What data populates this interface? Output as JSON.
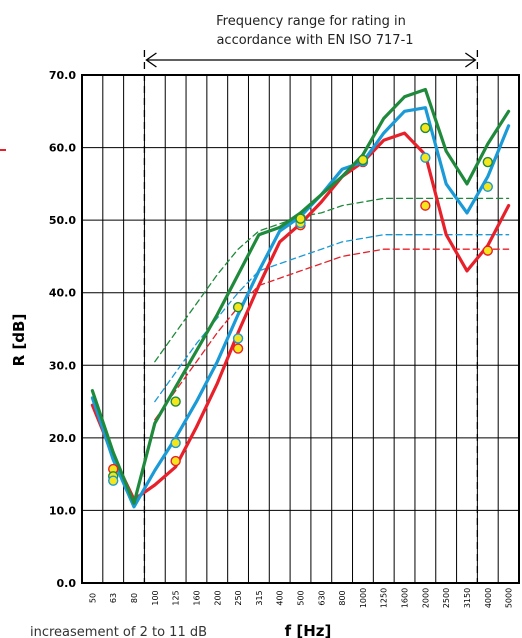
{
  "chart_data": {
    "type": "line",
    "title": "",
    "xlabel": "f [Hz]",
    "ylabel": "R [dB]",
    "ylim": [
      0,
      70
    ],
    "yticks": [
      "0.0",
      "10.0",
      "20.0",
      "30.0",
      "40.0",
      "50.0",
      "60.0",
      "70.0"
    ],
    "ytick_values": [
      0,
      10,
      20,
      30,
      40,
      50,
      60,
      70
    ],
    "categories": [
      "50",
      "63",
      "80",
      "100",
      "125",
      "160",
      "200",
      "250",
      "315",
      "400",
      "500",
      "630",
      "800",
      "1000",
      "1250",
      "1600",
      "2000",
      "2500",
      "3150",
      "4000",
      "5000"
    ],
    "grid": true,
    "annotation": {
      "text_line1": "Frequency range for rating in",
      "text_line2": "accordance with EN ISO 717-1",
      "from": "100",
      "to": "3150"
    },
    "caption": "increasement of 2 to 11 dB",
    "series": [
      {
        "color": "#e8202a",
        "style": "solid",
        "values": [
          24.5,
          17.5,
          11.5,
          13.5,
          16.0,
          21.5,
          27.5,
          34.5,
          41.0,
          47.0,
          49.5,
          52.5,
          56.0,
          58.0,
          61.0,
          62.0,
          59.0,
          48.0,
          43.0,
          46.5,
          52.0
        ]
      },
      {
        "color": "#1a9ad6",
        "style": "solid",
        "values": [
          25.5,
          17.0,
          10.5,
          15.5,
          20.0,
          25.0,
          30.5,
          37.0,
          43.0,
          48.5,
          50.5,
          53.5,
          57.0,
          58.0,
          62.0,
          65.0,
          65.5,
          55.0,
          51.0,
          56.0,
          63.0
        ]
      },
      {
        "color": "#1f8a3c",
        "style": "solid",
        "values": [
          26.5,
          18.0,
          11.0,
          22.0,
          27.0,
          32.0,
          37.0,
          42.5,
          48.0,
          49.0,
          51.0,
          53.5,
          56.0,
          59.0,
          64.0,
          67.0,
          68.0,
          59.5,
          55.0,
          60.5,
          65.0
        ]
      },
      {
        "color": "#e8202a",
        "style": "dashed",
        "values": [
          null,
          null,
          null,
          22.5,
          26.5,
          30.5,
          34.5,
          38.0,
          41.0,
          42.0,
          43.0,
          44.0,
          45.0,
          45.5,
          46.0,
          46.0,
          46.0,
          46.0,
          46.0,
          46.0,
          46.0
        ]
      },
      {
        "color": "#1a9ad6",
        "style": "dashed",
        "values": [
          null,
          null,
          null,
          25.0,
          29.0,
          33.0,
          36.5,
          40.0,
          43.0,
          44.0,
          45.0,
          46.0,
          47.0,
          47.5,
          48.0,
          48.0,
          48.0,
          48.0,
          48.0,
          48.0,
          48.0
        ]
      },
      {
        "color": "#1f8a3c",
        "style": "dashed",
        "values": [
          null,
          null,
          null,
          30.5,
          34.5,
          38.5,
          42.5,
          46.0,
          48.5,
          49.5,
          50.5,
          51.0,
          52.0,
          52.5,
          53.0,
          53.0,
          53.0,
          53.0,
          53.0,
          53.0,
          53.0
        ]
      }
    ],
    "points": [
      {
        "x": "63",
        "y": 15.7,
        "edge": "#e8202a"
      },
      {
        "x": "63",
        "y": 14.7,
        "edge": "#1f8a3c"
      },
      {
        "x": "63",
        "y": 14.1,
        "edge": "#1a9ad6"
      },
      {
        "x": "125",
        "y": 16.8,
        "edge": "#e8202a"
      },
      {
        "x": "125",
        "y": 19.3,
        "edge": "#1a9ad6"
      },
      {
        "x": "125",
        "y": 25.0,
        "edge": "#1f8a3c"
      },
      {
        "x": "250",
        "y": 32.3,
        "edge": "#e8202a"
      },
      {
        "x": "250",
        "y": 33.7,
        "edge": "#1a9ad6"
      },
      {
        "x": "250",
        "y": 38.0,
        "edge": "#1f8a3c"
      },
      {
        "x": "500",
        "y": 49.3,
        "edge": "#e8202a"
      },
      {
        "x": "500",
        "y": 49.6,
        "edge": "#1a9ad6"
      },
      {
        "x": "500",
        "y": 50.2,
        "edge": "#1f8a3c"
      },
      {
        "x": "1000",
        "y": 58.0,
        "edge": "#e8202a"
      },
      {
        "x": "1000",
        "y": 58.1,
        "edge": "#1a9ad6"
      },
      {
        "x": "1000",
        "y": 58.3,
        "edge": "#1f8a3c"
      },
      {
        "x": "2000",
        "y": 52.0,
        "edge": "#e8202a"
      },
      {
        "x": "2000",
        "y": 58.6,
        "edge": "#1a9ad6"
      },
      {
        "x": "2000",
        "y": 62.7,
        "edge": "#1f8a3c"
      },
      {
        "x": "4000",
        "y": 45.8,
        "edge": "#e8202a"
      },
      {
        "x": "4000",
        "y": 54.6,
        "edge": "#1a9ad6"
      },
      {
        "x": "4000",
        "y": 58.0,
        "edge": "#1f8a3c"
      }
    ],
    "colors": {
      "grid": "#000000",
      "marker_fill": "#f5e51c",
      "frame_accent": "#e8202a"
    }
  }
}
